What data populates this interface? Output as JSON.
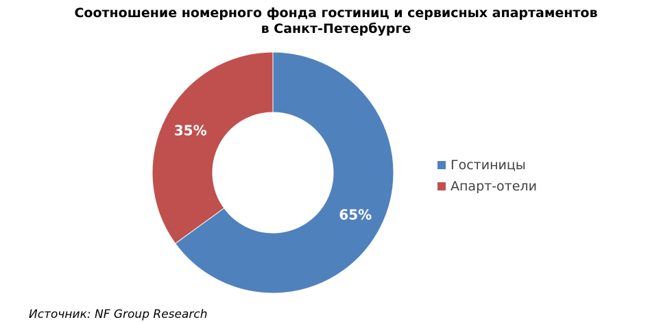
{
  "chart_data": {
    "type": "pie",
    "title": "Соотношение номерного фонда гостиниц и сервисных апартаментов в Санкт-Петербурге",
    "title_lines": [
      "Соотношение номерного фонда гостиниц и сервисных апартаментов",
      "в Санкт-Петербурге"
    ],
    "categories": [
      "Гостиницы",
      "Апарт-отели"
    ],
    "values": [
      65,
      35
    ],
    "labels": [
      "65%",
      "35%"
    ],
    "colors": [
      "#4F81BD",
      "#C0504D"
    ],
    "legend_position": "right"
  },
  "footer": {
    "source": "Источник: NF Group Research"
  }
}
